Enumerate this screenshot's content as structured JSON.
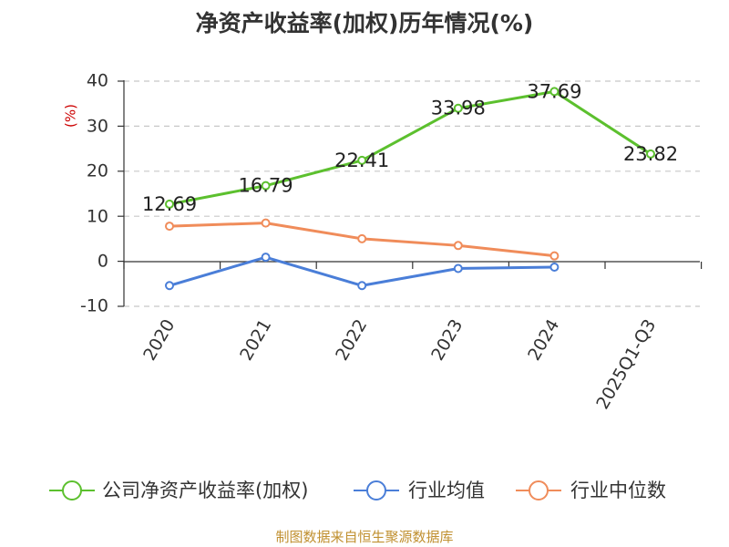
{
  "chart_data": {
    "type": "line",
    "title": "净资产收益率(加权)历年情况(%)",
    "ylabel": "(%)",
    "categories": [
      "2020",
      "2021",
      "2022",
      "2023",
      "2024",
      "2025Q1-Q3"
    ],
    "yticks": [
      "40",
      "30",
      "20",
      "10",
      "0",
      "-10"
    ],
    "ylim": [
      -10,
      40
    ],
    "grid": true,
    "legend_position": "bottom",
    "series": [
      {
        "name": "公司净资产收益率(加权)",
        "color": "#5cc02e",
        "values": [
          12.69,
          16.79,
          22.41,
          33.98,
          37.69,
          23.82
        ],
        "labels": [
          "12.69",
          "16.79",
          "22.41",
          "33.98",
          "37.69",
          "23.82"
        ]
      },
      {
        "name": "行业均值",
        "color": "#4a7ed8",
        "values": [
          -5.4,
          0.9,
          -5.4,
          -1.6,
          -1.3,
          null
        ]
      },
      {
        "name": "行业中位数",
        "color": "#f08c5a",
        "values": [
          7.8,
          8.5,
          5.0,
          3.5,
          1.2,
          null
        ]
      }
    ]
  },
  "ylabel_color": "#cc0000",
  "source": {
    "text": "制图数据来自恒生聚源数据库",
    "color": "#c09030"
  }
}
